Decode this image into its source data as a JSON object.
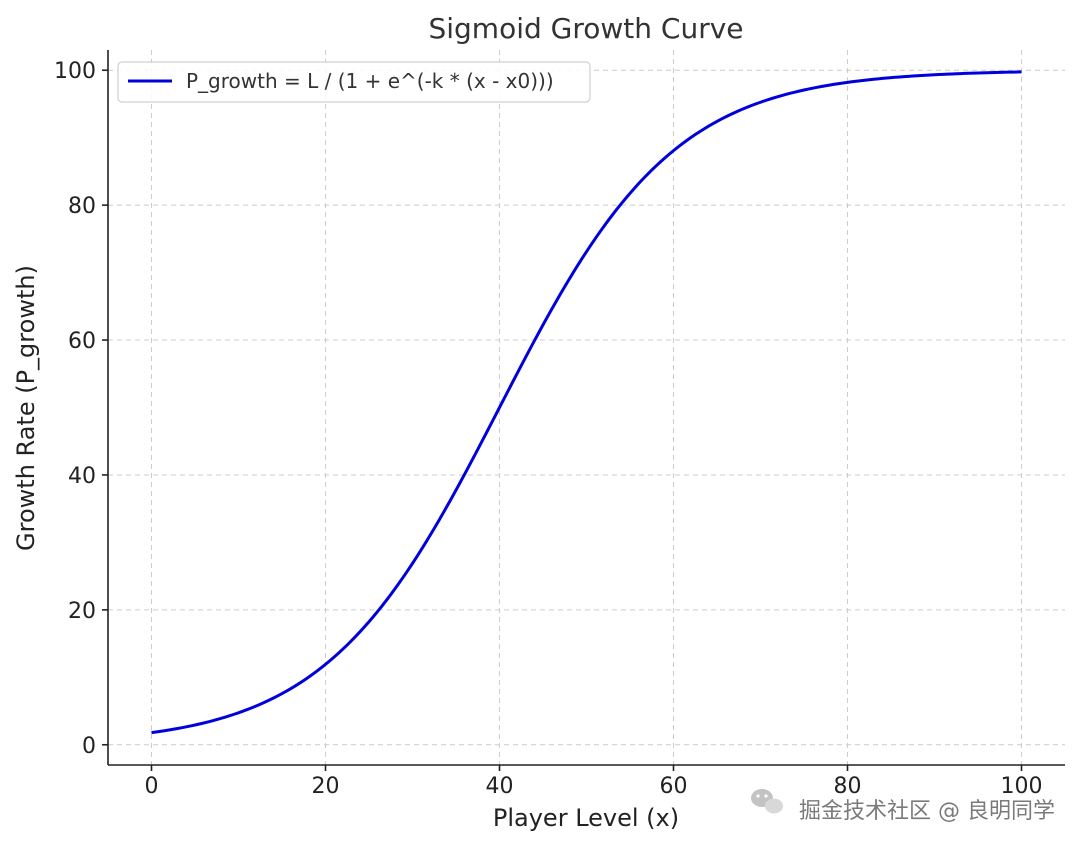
{
  "chart_data": {
    "type": "line",
    "title": "Sigmoid Growth Curve",
    "xlabel": "Player Level (x)",
    "ylabel": "Growth Rate (P_growth)",
    "xlim": [
      -5,
      105
    ],
    "ylim": [
      -3,
      103
    ],
    "xticks": [
      0,
      20,
      40,
      60,
      80,
      100
    ],
    "yticks": [
      0,
      20,
      40,
      60,
      80,
      100
    ],
    "grid": true,
    "legend_position": "top-left",
    "series": [
      {
        "name": "P_growth = L / (1 + e^(-k * (x - x0)))",
        "color": "#0000dd",
        "function": "sigmoid",
        "params": {
          "L": 100,
          "k": 0.1,
          "x0": 40
        },
        "x_range": [
          0,
          100
        ]
      }
    ]
  },
  "watermark": {
    "text": "掘金技术社区 @ 良明同学",
    "icon": "wechat-icon"
  }
}
